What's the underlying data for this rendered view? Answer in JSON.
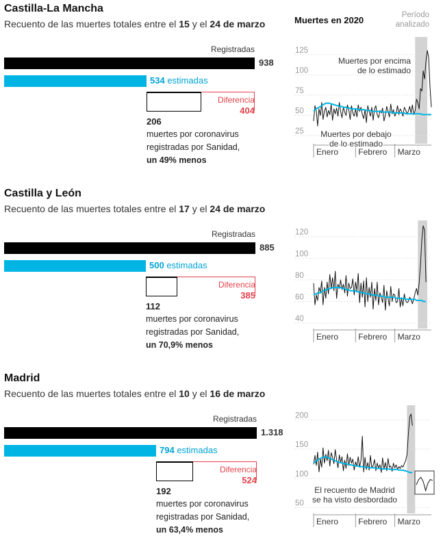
{
  "chart_panel_title": "Muertes en 2020",
  "period_label_line1": "Período",
  "period_label_line2": "analizado",
  "registered_label": "Registradas",
  "estimated_suffix": "estimadas",
  "difference_label": "Diferencia",
  "covid_text_line1": "muertes por coronavirus",
  "covid_text_line2": "registradas por Sanidad,",
  "month_labels": [
    "Enero",
    "Febrero",
    "Marzo"
  ],
  "colors": {
    "registered": "#000000",
    "estimated": "#00b4e3",
    "difference": "#e2414b",
    "period_band": "#d3d3d3"
  },
  "regions": [
    {
      "name": "Castilla-La Mancha",
      "subtitle_prefix": "Recuento de las muertes totales entre el",
      "date_start": "15",
      "subtitle_mid": "y el",
      "date_end": "24 de marzo",
      "registered": 938,
      "registered_text": "938",
      "estimated": 534,
      "estimated_text": "534",
      "difference_text": "404",
      "covid": 206,
      "covid_text": "206",
      "percent_text": "un 49% menos",
      "annotation_above_1": "Muertes por encima",
      "annotation_above_2": "de lo estimado",
      "annotation_below_1": "Muertes por debajo",
      "annotation_below_2": "de lo estimado"
    },
    {
      "name": "Castilla y León",
      "subtitle_prefix": "Recuento de las muertes totales entre el",
      "date_start": "17",
      "subtitle_mid": "y el",
      "date_end": "24 de marzo",
      "registered": 885,
      "registered_text": "885",
      "estimated": 500,
      "estimated_text": "500",
      "difference_text": "385",
      "covid": 112,
      "covid_text": "112",
      "percent_text": "un 70,9% menos"
    },
    {
      "name": "Madrid",
      "subtitle_prefix": "Recuento de las muertes totales entre el",
      "date_start": "10",
      "subtitle_mid": "y el",
      "date_end": "16 de marzo",
      "registered": 1318,
      "registered_text": "1.318",
      "estimated": 794,
      "estimated_text": "794",
      "difference_text": "524",
      "covid": 192,
      "covid_text": "192",
      "percent_text": "un 63,4% menos",
      "annotation_1": "El recuento de Madrid",
      "annotation_2": "se ha visto desbordado"
    }
  ],
  "chart_data": [
    {
      "type": "line",
      "region": "Castilla-La Mancha",
      "x_unit": "day of 2020",
      "ylim": [
        15,
        140
      ],
      "yticks": [
        25,
        50,
        75,
        100,
        125
      ],
      "period": [
        76,
        85
      ],
      "series": [
        {
          "key": "registered",
          "x_start": 1,
          "values": [
            43,
            62,
            55,
            37,
            58,
            50,
            66,
            45,
            55,
            60,
            48,
            56,
            51,
            64,
            44,
            58,
            52,
            59,
            49,
            66,
            55,
            47,
            60,
            54,
            50,
            63,
            57,
            45,
            62,
            53,
            49,
            58,
            48,
            63,
            55,
            60,
            51,
            46,
            57,
            41,
            62,
            55,
            49,
            60,
            44,
            58,
            62,
            51,
            47,
            56,
            53,
            59,
            43,
            50,
            61,
            55,
            48,
            64,
            52,
            57,
            49,
            53,
            62,
            51,
            58,
            55,
            49,
            60,
            57,
            52,
            55,
            61,
            53,
            63,
            51,
            56,
            70,
            66,
            58,
            83,
            80,
            105,
            95,
            117,
            130,
            122,
            85,
            60
          ]
        },
        {
          "key": "estimated",
          "x_start": 1,
          "values": [
            55,
            57,
            58,
            59,
            60,
            61,
            62,
            63,
            64,
            65,
            65,
            65,
            65,
            64,
            64,
            63,
            63,
            62,
            62,
            61,
            61,
            61,
            60,
            60,
            60,
            59,
            59,
            59,
            58,
            58,
            58,
            58,
            58,
            57,
            57,
            57,
            57,
            57,
            57,
            56,
            56,
            56,
            56,
            55,
            55,
            55,
            55,
            55,
            55,
            55,
            55,
            54,
            54,
            54,
            54,
            54,
            54,
            54,
            54,
            53,
            53,
            53,
            53,
            53,
            53,
            53,
            53,
            53,
            52,
            52,
            52,
            52,
            52,
            52,
            52,
            52,
            52,
            52,
            52,
            52,
            51,
            51,
            51,
            51,
            51,
            51,
            51,
            51
          ]
        }
      ]
    },
    {
      "type": "line",
      "region": "Castilla y León",
      "x_unit": "day of 2020",
      "ylim": [
        35,
        135
      ],
      "yticks": [
        40,
        60,
        80,
        100,
        120
      ],
      "period": [
        78,
        85
      ],
      "series": [
        {
          "key": "registered",
          "x_start": 1,
          "values": [
            77,
            57,
            66,
            61,
            73,
            69,
            79,
            57,
            73,
            63,
            78,
            67,
            85,
            72,
            82,
            70,
            88,
            63,
            76,
            72,
            80,
            71,
            76,
            68,
            84,
            65,
            77,
            72,
            73,
            81,
            66,
            78,
            70,
            86,
            59,
            77,
            64,
            79,
            55,
            82,
            60,
            73,
            64,
            78,
            53,
            72,
            61,
            78,
            57,
            68,
            64,
            59,
            75,
            52,
            70,
            63,
            56,
            74,
            60,
            67,
            66,
            59,
            60,
            72,
            55,
            63,
            56,
            67,
            61,
            59,
            60,
            64,
            62,
            58,
            62,
            68,
            72,
            66,
            77,
            95,
            118,
            130,
            126,
            78
          ]
        },
        {
          "key": "estimated",
          "x_start": 1,
          "values": [
            66,
            67,
            67,
            68,
            68,
            68,
            69,
            70,
            70,
            71,
            71,
            72,
            72,
            72,
            73,
            73,
            73,
            73,
            73,
            73,
            73,
            72,
            72,
            72,
            71,
            71,
            71,
            70,
            70,
            70,
            70,
            70,
            69,
            69,
            69,
            68,
            68,
            68,
            68,
            67,
            67,
            67,
            67,
            66,
            66,
            66,
            66,
            66,
            65,
            65,
            65,
            65,
            65,
            64,
            64,
            64,
            64,
            64,
            64,
            64,
            64,
            63,
            63,
            63,
            63,
            63,
            63,
            63,
            62,
            62,
            62,
            62,
            62,
            62,
            62,
            62,
            61,
            61,
            61,
            61,
            61,
            60,
            60,
            60
          ]
        }
      ]
    },
    {
      "type": "line",
      "region": "Madrid",
      "x_unit": "day of 2020",
      "ylim": [
        40,
        225
      ],
      "yticks": [
        50,
        100,
        150,
        200
      ],
      "period": [
        70,
        76
      ],
      "series": [
        {
          "key": "registered",
          "x_start": 1,
          "values": [
            124,
            139,
            122,
            145,
            111,
            133,
            119,
            152,
            126,
            141,
            130,
            148,
            121,
            144,
            136,
            125,
            149,
            132,
            118,
            140,
            127,
            137,
            113,
            131,
            117,
            142,
            122,
            136,
            126,
            133,
            114,
            128,
            121,
            137,
            119,
            131,
            172,
            111,
            136,
            115,
            127,
            114,
            139,
            118,
            122,
            132,
            113,
            126,
            118,
            123,
            110,
            135,
            116,
            127,
            113,
            134,
            119,
            121,
            112,
            126,
            118,
            123,
            115,
            120,
            117,
            122,
            119,
            125,
            130,
            140,
            175,
            205,
            210,
            190
          ]
        },
        {
          "key": "estimated",
          "x_start": 1,
          "values": [
            126,
            128,
            130,
            131,
            133,
            134,
            135,
            136,
            137,
            137,
            136,
            135,
            134,
            133,
            132,
            131,
            130,
            129,
            128,
            127,
            127,
            126,
            126,
            125,
            125,
            124,
            124,
            123,
            123,
            122,
            122,
            121,
            121,
            121,
            120,
            120,
            120,
            119,
            119,
            119,
            119,
            118,
            118,
            118,
            118,
            118,
            117,
            117,
            117,
            117,
            117,
            116,
            116,
            116,
            116,
            116,
            116,
            115,
            115,
            115,
            115,
            115,
            115,
            114,
            114,
            114,
            114,
            113,
            113,
            112,
            111,
            110,
            110,
            110
          ]
        },
        {
          "key": "overflow_inset",
          "x_start": 77,
          "values": [
            78,
            90,
            95,
            85,
            65,
            82,
            90,
            88
          ]
        }
      ]
    }
  ]
}
